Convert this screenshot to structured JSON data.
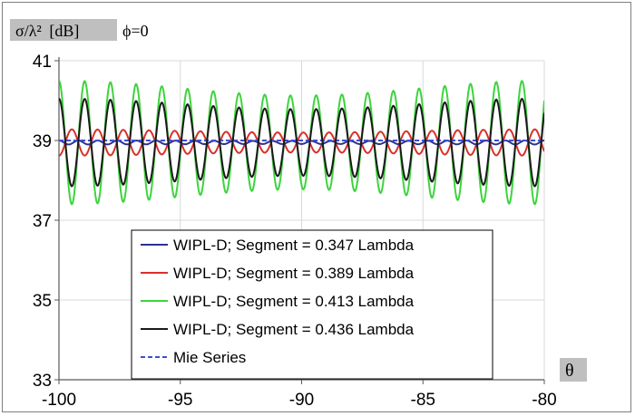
{
  "chart_data": {
    "type": "line",
    "ylabel_symbol": "σ/λ²",
    "ylabel_unit": "[dB]",
    "annotation": "ϕ=0",
    "xlabel": "θ",
    "xlim": [
      -100,
      -80
    ],
    "ylim": [
      33,
      41
    ],
    "xticks": [
      -100,
      -95,
      -90,
      -85,
      -80
    ],
    "yticks": [
      33,
      35,
      37,
      39,
      41
    ],
    "grid": true,
    "legend_position": "bottom-center",
    "series": [
      {
        "name": "WIPL-D; Segment = 0.347 Lambda",
        "color": "#2e3192",
        "dash": false,
        "baseline": 38.95,
        "amplitude": 0.05,
        "period": 0.8,
        "phase": 0.0,
        "x": [
          -100,
          -90,
          -80
        ],
        "values": [
          39.0,
          38.9,
          39.0
        ]
      },
      {
        "name": "WIPL-D; Segment = 0.389 Lambda",
        "color": "#d9302c",
        "dash": false,
        "baseline": 38.95,
        "amplitude": 0.33,
        "period": 1.06,
        "phase": 3.14,
        "x": [
          -100,
          -90,
          -80
        ],
        "values": [
          38.6,
          39.3,
          38.6
        ]
      },
      {
        "name": "WIPL-D; Segment = 0.413 Lambda",
        "color": "#3dd43d",
        "dash": false,
        "baseline": 38.95,
        "amplitude": 1.55,
        "period": 1.06,
        "phase": 0.0,
        "x": [
          -100,
          -94.4,
          -90,
          -80
        ],
        "values": [
          39.7,
          40.5,
          37.4,
          39.8
        ]
      },
      {
        "name": "WIPL-D; Segment = 0.436 Lambda",
        "color": "#1a1a1a",
        "dash": false,
        "baseline": 38.95,
        "amplitude": 1.1,
        "period": 1.06,
        "phase": 0.0,
        "x": [
          -100,
          -93.7,
          -90,
          -80
        ],
        "values": [
          39.5,
          40.1,
          37.6,
          39.7
        ]
      },
      {
        "name": "Mie Series",
        "color": "#3b4fd8",
        "dash": true,
        "baseline": 39.0,
        "amplitude": 0.0,
        "period": 1.0,
        "phase": 0.0,
        "x": [
          -100,
          -80
        ],
        "values": [
          39.0,
          39.0
        ]
      }
    ]
  }
}
